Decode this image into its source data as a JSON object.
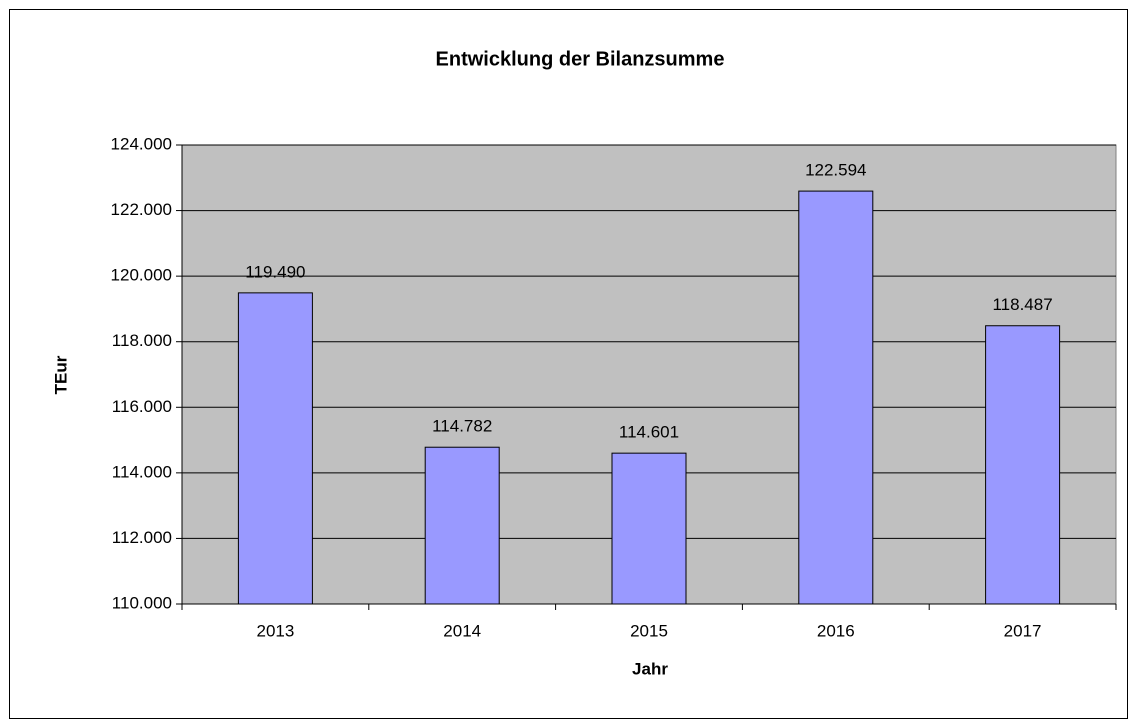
{
  "chart_data": {
    "type": "bar",
    "title": "Entwicklung der Bilanzsumme",
    "x_label": "Jahr",
    "y_label": "TEur",
    "categories": [
      "2013",
      "2014",
      "2015",
      "2016",
      "2017"
    ],
    "values": [
      119490,
      114782,
      114601,
      122594,
      118487
    ],
    "value_labels": [
      "119.490",
      "114.782",
      "114.601",
      "122.594",
      "118.487"
    ],
    "color": "#9999ff",
    "ylim": [
      110000,
      124000
    ],
    "yticks": [
      {
        "value": 110000,
        "label": "110.000"
      },
      {
        "value": 112000,
        "label": "112.000"
      },
      {
        "value": 114000,
        "label": "114.000"
      },
      {
        "value": 116000,
        "label": "116.000"
      },
      {
        "value": 118000,
        "label": "118.000"
      },
      {
        "value": 120000,
        "label": "120.000"
      },
      {
        "value": 122000,
        "label": "122.000"
      },
      {
        "value": 124000,
        "label": "124.000"
      }
    ],
    "grid": true
  }
}
